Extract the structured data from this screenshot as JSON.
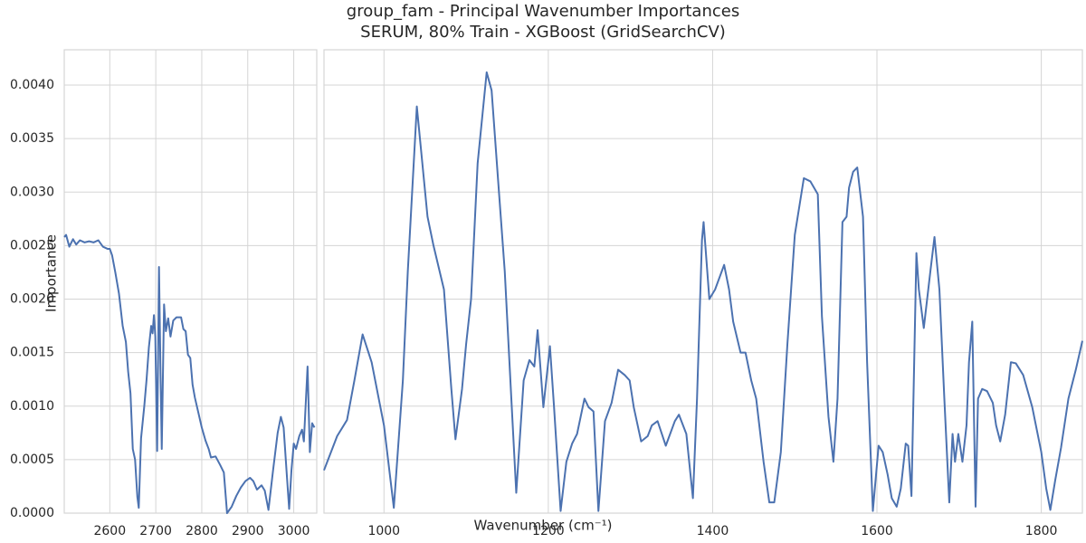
{
  "chart_data": [
    {
      "type": "line",
      "title": "group_fam - Principal Wavenumber Importances",
      "subtitle": "SERUM, 80% Train - XGBoost (GridSearchCV)",
      "xlabel": "Wavenumber (cm⁻¹)",
      "ylabel": "Importance",
      "color": "#4c72b0",
      "grid": true,
      "xlim": [
        2501,
        3050
      ],
      "xticks": [
        2600,
        2700,
        2800,
        2900,
        3000
      ],
      "ylim": [
        0,
        0.00433
      ],
      "yticks": [
        {
          "value": 0,
          "label": "0.0000"
        },
        {
          "value": 0.0005,
          "label": "0.0005"
        },
        {
          "value": 0.001,
          "label": "0.0010"
        },
        {
          "value": 0.0015,
          "label": "0.0015"
        },
        {
          "value": 0.002,
          "label": "0.0020"
        },
        {
          "value": 0.0025,
          "label": "0.0025"
        },
        {
          "value": 0.003,
          "label": "0.0030"
        },
        {
          "value": 0.0035,
          "label": "0.0035"
        },
        {
          "value": 0.004,
          "label": "0.0040"
        }
      ],
      "x": [
        2501,
        2505,
        2512,
        2520,
        2527,
        2535,
        2545,
        2555,
        2565,
        2575,
        2585,
        2595,
        2600,
        2605,
        2612,
        2620,
        2628,
        2635,
        2640,
        2645,
        2650,
        2655,
        2660,
        2663,
        2668,
        2675,
        2680,
        2685,
        2690,
        2693,
        2696,
        2699,
        2703,
        2707,
        2710,
        2713,
        2718,
        2722,
        2727,
        2732,
        2738,
        2745,
        2755,
        2760,
        2765,
        2770,
        2775,
        2780,
        2785,
        2792,
        2800,
        2808,
        2815,
        2820,
        2830,
        2840,
        2848,
        2855,
        2865,
        2875,
        2885,
        2895,
        2905,
        2912,
        2920,
        2930,
        2937,
        2945,
        2955,
        2965,
        2972,
        2978,
        2985,
        2990,
        2995,
        3000,
        3005,
        3012,
        3018,
        3022,
        3030,
        3035,
        3040,
        3045
      ],
      "values": [
        0.00258,
        0.0026,
        0.00249,
        0.00256,
        0.00251,
        0.00255,
        0.00253,
        0.00254,
        0.00253,
        0.00255,
        0.00249,
        0.00247,
        0.00247,
        0.00241,
        0.00225,
        0.00205,
        0.00175,
        0.0016,
        0.00132,
        0.00112,
        0.0006,
        0.0005,
        0.00015,
        5e-05,
        0.0007,
        0.001,
        0.00125,
        0.00155,
        0.00175,
        0.00168,
        0.00185,
        0.00165,
        0.00058,
        0.0023,
        0.0014,
        0.0006,
        0.00195,
        0.0017,
        0.00182,
        0.00165,
        0.0018,
        0.00183,
        0.00183,
        0.00172,
        0.0017,
        0.00148,
        0.00145,
        0.0012,
        0.00108,
        0.00095,
        0.0008,
        0.00068,
        0.0006,
        0.00052,
        0.00053,
        0.00045,
        0.00038,
        0,
        6e-05,
        0.00016,
        0.00024,
        0.0003,
        0.00033,
        0.0003,
        0.00022,
        0.00026,
        0.00021,
        3e-05,
        0.0004,
        0.00075,
        0.0009,
        0.0008,
        0.00035,
        4e-05,
        0.0004,
        0.00065,
        0.0006,
        0.00072,
        0.00078,
        0.00067,
        0.00137,
        0.00057,
        0.00084,
        0.0008
      ]
    },
    {
      "type": "line",
      "color": "#4c72b0",
      "xlim": [
        927,
        1850
      ],
      "xticks": [
        1000,
        1200,
        1400,
        1600,
        1800
      ],
      "x": [
        927,
        943,
        955,
        964,
        974,
        985,
        1000,
        1012,
        1023,
        1029,
        1040,
        1053,
        1060,
        1073,
        1082,
        1087,
        1095,
        1100,
        1106,
        1114,
        1125,
        1131,
        1139,
        1147,
        1155,
        1161,
        1170,
        1177,
        1183,
        1187,
        1194,
        1202,
        1207,
        1215,
        1222,
        1229,
        1235,
        1244,
        1249,
        1255,
        1261,
        1269,
        1277,
        1285,
        1293,
        1299,
        1304,
        1313,
        1321,
        1326,
        1333,
        1343,
        1354,
        1359,
        1368,
        1376,
        1381,
        1387,
        1389,
        1396,
        1403,
        1414,
        1420,
        1425,
        1434,
        1440,
        1447,
        1453,
        1462,
        1469,
        1475,
        1483,
        1491,
        1500,
        1511,
        1519,
        1528,
        1533,
        1541,
        1547,
        1552,
        1558,
        1563,
        1566,
        1571,
        1576,
        1583,
        1588,
        1595,
        1602,
        1607,
        1613,
        1618,
        1624,
        1629,
        1635,
        1638,
        1642,
        1648,
        1651,
        1657,
        1665,
        1670,
        1676,
        1682,
        1688,
        1692,
        1695,
        1699,
        1704,
        1709,
        1712,
        1716,
        1720,
        1723,
        1728,
        1734,
        1741,
        1745,
        1750,
        1756,
        1763,
        1769,
        1778,
        1789,
        1800,
        1806,
        1811,
        1817,
        1824,
        1833,
        1842,
        1850
      ],
      "values": [
        0.0004,
        0.00072,
        0.00087,
        0.00124,
        0.00167,
        0.00141,
        0.00082,
        5e-05,
        0.00124,
        0.00226,
        0.0038,
        0.00277,
        0.00251,
        0.00209,
        0.00116,
        0.00069,
        0.00116,
        0.00158,
        0.002,
        0.00327,
        0.00412,
        0.00395,
        0.0031,
        0.00226,
        0.00107,
        0.00019,
        0.00124,
        0.00143,
        0.00137,
        0.00171,
        0.00099,
        0.00156,
        0.00099,
        2e-05,
        0.00048,
        0.00065,
        0.00074,
        0.00107,
        0.00099,
        0.00095,
        2e-05,
        0.00086,
        0.00103,
        0.00134,
        0.00129,
        0.00124,
        0.00099,
        0.00067,
        0.00072,
        0.00082,
        0.00086,
        0.00063,
        0.00086,
        0.00092,
        0.00074,
        0.00014,
        0.00107,
        0.00255,
        0.00272,
        0.002,
        0.00209,
        0.00232,
        0.00209,
        0.00179,
        0.0015,
        0.0015,
        0.00124,
        0.00107,
        0.00048,
        0.0001,
        0.0001,
        0.00057,
        0.00158,
        0.0026,
        0.00313,
        0.0031,
        0.00298,
        0.00184,
        0.0009,
        0.00048,
        0.00107,
        0.00272,
        0.00277,
        0.00304,
        0.00319,
        0.00323,
        0.00277,
        0.00141,
        2e-05,
        0.00063,
        0.00057,
        0.00036,
        0.00014,
        6e-05,
        0.00023,
        0.00065,
        0.00063,
        0.00016,
        0.00243,
        0.00209,
        0.00173,
        0.00226,
        0.00258,
        0.00209,
        0.00107,
        0.0001,
        0.00074,
        0.00048,
        0.00074,
        0.00048,
        0.00082,
        0.00141,
        0.00179,
        6e-05,
        0.00107,
        0.00116,
        0.00114,
        0.00103,
        0.00082,
        0.00067,
        0.00092,
        0.00141,
        0.0014,
        0.00129,
        0.00099,
        0.00057,
        0.00023,
        3e-05,
        0.00031,
        0.00061,
        0.00107,
        0.00134,
        0.00161
      ]
    }
  ]
}
